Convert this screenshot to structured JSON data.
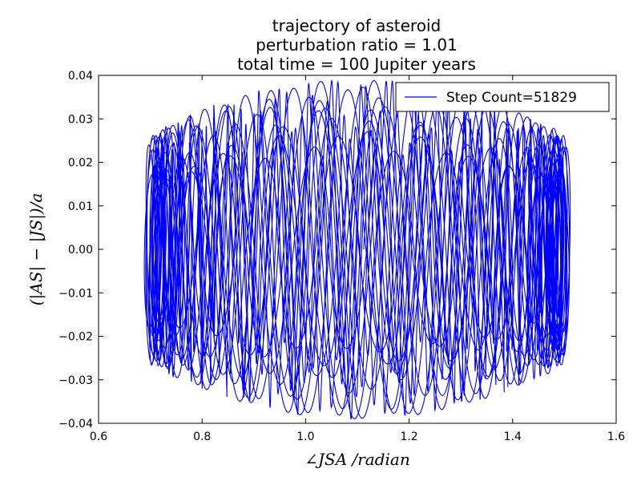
{
  "chart_data": {
    "type": "line",
    "title_lines": [
      "trajectory of asteroid",
      "perturbation ratio = 1.01",
      "total time = 100 Jupiter years"
    ],
    "xlabel": "∠JSA /radian",
    "ylabel": "(|AS| − |JS|)/a",
    "xlim": [
      0.6,
      1.6
    ],
    "ylim": [
      -0.04,
      0.04
    ],
    "xticks": [
      0.6,
      0.8,
      1.0,
      1.2,
      1.4,
      1.6
    ],
    "xtick_labels": [
      "0.6",
      "0.8",
      "1.0",
      "1.2",
      "1.4",
      "1.6"
    ],
    "yticks": [
      -0.04,
      -0.03,
      -0.02,
      -0.01,
      0.0,
      0.01,
      0.02,
      0.03,
      0.04
    ],
    "ytick_labels": [
      "−0.04",
      "−0.03",
      "−0.02",
      "−0.01",
      "0.00",
      "0.01",
      "0.02",
      "0.03",
      "0.04"
    ],
    "grid": false,
    "legend_position": "top-right",
    "series": [
      {
        "name": "Step Count=51829",
        "color": "#0000ff",
        "description": "dense looping orbit path spanning roughly x 0.70–1.50, y −0.039–0.038",
        "x_range": [
          0.7,
          1.5
        ],
        "y_range": [
          -0.039,
          0.038
        ],
        "end_point": [
          0.87,
          0.022
        ]
      }
    ]
  }
}
